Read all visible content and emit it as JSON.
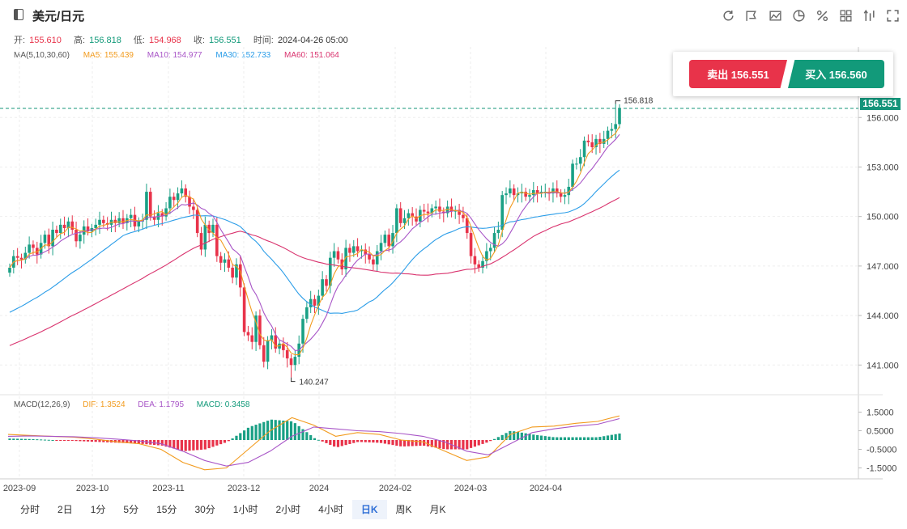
{
  "header": {
    "title": "美元/日元",
    "tools": [
      "refresh-icon",
      "draw-icon",
      "chart-type-icon",
      "pie-icon",
      "percent-icon",
      "grid-icon",
      "indicator-icon",
      "fullscreen-icon"
    ]
  },
  "ohlc": {
    "open_label": "开:",
    "open": "155.610",
    "high_label": "高:",
    "high": "156.818",
    "low_label": "低:",
    "low": "154.968",
    "close_label": "收:",
    "close": "156.551",
    "time_label": "时间:",
    "time": "2024-04-26 05:00"
  },
  "ma": {
    "label": "MA(5,10,30,60)",
    "ma5": "MA5: 155.439",
    "ma10": "MA10: 154.977",
    "ma30": "MA30: 152.733",
    "ma60": "MA60: 151.064"
  },
  "trade": {
    "sell": "卖出 156.551",
    "buy": "买入 156.560"
  },
  "current_price": "156.551",
  "high_marker": "156.818",
  "low_marker": "140.247",
  "macd": {
    "label": "MACD(12,26,9)",
    "dif": "DIF: 1.3524",
    "dea": "DEA: 1.1795",
    "macd": "MACD: 0.3458"
  },
  "periods": [
    "分时",
    "2日",
    "1分",
    "5分",
    "15分",
    "30分",
    "1小时",
    "2小时",
    "4小时",
    "日K",
    "周K",
    "月K"
  ],
  "active_period": "日K",
  "colors": {
    "up": "#1aa085",
    "down": "#e8334a",
    "ma5": "#f29b1e",
    "ma10": "#a855c7",
    "ma30": "#2b9de8",
    "ma60": "#d9336e"
  },
  "chart_data": {
    "type": "candlestick",
    "x_tick_labels": [
      "2023-09",
      "2023-10",
      "2023-11",
      "2023-12",
      "2024",
      "2024-02",
      "2024-03",
      "2024-04"
    ],
    "y_tick_labels": [
      "156.000",
      "153.000",
      "150.000",
      "147.000",
      "144.000",
      "141.000"
    ],
    "ylim": [
      139.2,
      159.2
    ],
    "closes": [
      146.9,
      147.6,
      147.5,
      147.4,
      147.8,
      148.3,
      148.1,
      147.7,
      148.4,
      148.9,
      148.2,
      149.2,
      149.0,
      149.5,
      149.3,
      149.7,
      149.2,
      148.5,
      148.9,
      149.4,
      149.1,
      149.3,
      149.5,
      149.8,
      149.6,
      149.5,
      149.8,
      149.6,
      149.9,
      149.6,
      149.9,
      150.1,
      149.4,
      149.7,
      149.8,
      151.5,
      150.0,
      149.8,
      150.2,
      150.0,
      150.5,
      151.2,
      151.0,
      151.4,
      151.7,
      151.2,
      150.6,
      150.4,
      149.0,
      148.0,
      149.5,
      149.0,
      149.5,
      147.6,
      147.2,
      147.4,
      146.9,
      146.3,
      147.1,
      145.7,
      143.0,
      142.8,
      142.4,
      144.0,
      142.2,
      141.2,
      142.5,
      142.8,
      142.0,
      142.3,
      141.9,
      141.4,
      141.0,
      141.5,
      142.3,
      143.8,
      144.5,
      145.0,
      144.6,
      145.2,
      146.2,
      145.8,
      147.5,
      147.9,
      147.4,
      146.8,
      148.1,
      147.8,
      148.2,
      147.9,
      148.0,
      147.7,
      147.4,
      147.1,
      147.9,
      148.4,
      148.9,
      148.2,
      149.0,
      150.5,
      149.6,
      149.9,
      150.2,
      150.0,
      149.7,
      150.4,
      150.3,
      150.2,
      150.5,
      150.6,
      150.3,
      150.2,
      150.6,
      150.3,
      150.4,
      150.1,
      149.9,
      149.0,
      147.6,
      147.1,
      146.9,
      147.3,
      147.9,
      148.1,
      149.0,
      149.2,
      151.3,
      151.4,
      151.7,
      151.3,
      151.4,
      151.5,
      151.2,
      151.3,
      151.6,
      151.4,
      151.5,
      151.5,
      151.4,
      151.7,
      151.4,
      151.2,
      151.3,
      151.8,
      153.2,
      153.2,
      153.6,
      154.6,
      154.5,
      154.2,
      154.7,
      154.4,
      154.7,
      155.2,
      155.3,
      155.6,
      156.55
    ],
    "price_high": {
      "value": 156.818,
      "index": 155
    },
    "price_low": {
      "value": 140.247,
      "index": 72
    },
    "macd": {
      "y_tick_labels": [
        "1.5000",
        "0.5000",
        "-0.5000",
        "-1.5000"
      ],
      "ylim": [
        -2.0,
        2.0
      ],
      "dif": [
        0.3,
        0.25,
        0.2,
        0.15,
        0.05,
        -0.1,
        -0.2,
        -0.5,
        -1.2,
        -1.6,
        -1.5,
        -0.5,
        0.5,
        1.2,
        0.8,
        0.2,
        0.4,
        0.3,
        0.0,
        -0.1,
        -0.6,
        -1.1,
        -0.9,
        0.3,
        0.7,
        0.75,
        0.9,
        1.0,
        1.3
      ],
      "dea": [
        0.2,
        0.22,
        0.2,
        0.18,
        0.12,
        0.05,
        -0.05,
        -0.2,
        -0.6,
        -1.1,
        -1.4,
        -1.2,
        -0.6,
        0.2,
        0.7,
        0.6,
        0.5,
        0.45,
        0.35,
        0.2,
        -0.1,
        -0.6,
        -0.8,
        -0.2,
        0.4,
        0.6,
        0.75,
        0.85,
        1.15
      ],
      "hist": [
        0.08,
        0.05,
        0.0,
        -0.05,
        -0.1,
        -0.15,
        -0.2,
        -0.3,
        -0.6,
        -0.5,
        -0.1,
        0.7,
        1.1,
        1.0,
        0.1,
        -0.4,
        -0.1,
        -0.15,
        -0.35,
        -0.3,
        -0.5,
        -0.5,
        -0.1,
        0.5,
        0.3,
        0.15,
        0.15,
        0.15,
        0.35
      ]
    }
  }
}
